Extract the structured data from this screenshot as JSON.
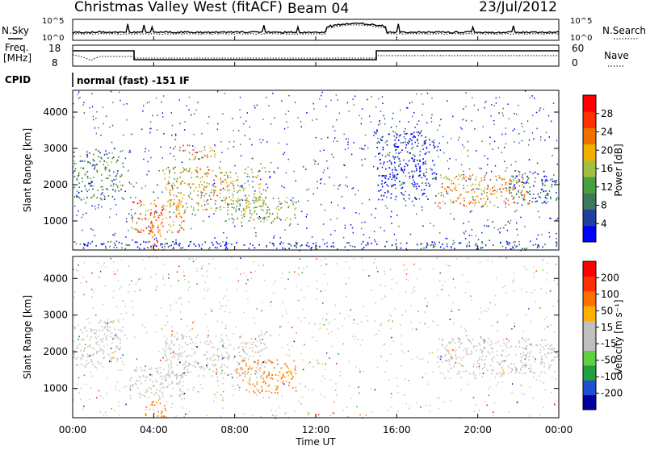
{
  "header": {
    "radar": "Christmas Valley West (fitACF)",
    "beam": "Beam 04",
    "date": "23/Jul/2012"
  },
  "noise_panel": {
    "left_label": "N.Sky",
    "right_label": "N.Search",
    "left_ticks": [
      "10^5",
      "10^0"
    ],
    "right_ticks": [
      "10^5",
      "10^0"
    ]
  },
  "freq_panel": {
    "left_label_1": "Freq.",
    "left_label_2": "[MHz]",
    "right_label": "Nave",
    "left_ticks": [
      "18",
      "8"
    ],
    "right_ticks": [
      "60",
      "0"
    ]
  },
  "cpid": {
    "label": "CPID",
    "text": "normal (fast) -151 IF"
  },
  "colors": {
    "power_scale": [
      "#0000ff",
      "#2040a0",
      "#3a7a5a",
      "#4aa040",
      "#a0c040",
      "#f0b000",
      "#f07000",
      "#ff3000",
      "#ff0000"
    ],
    "velocity_scale": [
      "#0000a0",
      "#2050d0",
      "#20a040",
      "#60d040",
      "#c0c0c0",
      "#c0c0c0",
      "#ffb000",
      "#ff7000",
      "#ff3000",
      "#ff0000"
    ],
    "gray_scatter": "#c4c4c0"
  },
  "chart_data": [
    {
      "type": "heatmap",
      "name": "power_panel",
      "ylabel": "Slant Range [km]",
      "yticks": [
        1000,
        2000,
        3000,
        4000
      ],
      "ylim": [
        200,
        4600
      ],
      "xlim": [
        0,
        24
      ],
      "colorbar": {
        "label": "Power [dB]",
        "ticks": [
          "28",
          "24",
          "20",
          "16",
          "12",
          "8",
          "4"
        ]
      },
      "regions": [
        {
          "t0": 0.0,
          "t1": 2.5,
          "r0": 1600,
          "r1": 3000,
          "level": 0.55
        },
        {
          "t0": 2.8,
          "t1": 5.5,
          "r0": 700,
          "r1": 1600,
          "level": 0.95
        },
        {
          "t0": 3.6,
          "t1": 4.6,
          "r0": 200,
          "r1": 900,
          "level": 1.0
        },
        {
          "t0": 4.5,
          "t1": 9.5,
          "r0": 1300,
          "r1": 2500,
          "level": 0.8
        },
        {
          "t0": 5.0,
          "t1": 7.0,
          "r0": 2700,
          "r1": 3100,
          "level": 0.85
        },
        {
          "t0": 7.5,
          "t1": 11.0,
          "r0": 1000,
          "r1": 1700,
          "level": 0.7
        },
        {
          "t0": 18.0,
          "t1": 22.5,
          "r0": 1400,
          "r1": 2300,
          "level": 0.9
        },
        {
          "t0": 21.5,
          "t1": 24.0,
          "r0": 1500,
          "r1": 2400,
          "level": 0.45
        },
        {
          "t0": 15.0,
          "t1": 18.0,
          "r0": 1600,
          "r1": 3500,
          "level": 0.3
        },
        {
          "t0": 0.0,
          "t1": 24.0,
          "r0": 250,
          "r1": 450,
          "level": 0.35
        }
      ]
    },
    {
      "type": "heatmap",
      "name": "velocity_panel",
      "ylabel": "Slant Range [km]",
      "yticks": [
        1000,
        2000,
        3000,
        4000
      ],
      "ylim": [
        200,
        4600
      ],
      "xlim": [
        0,
        24
      ],
      "xlabel": "Time UT",
      "xticks": [
        "00:00",
        "04:00",
        "08:00",
        "12:00",
        "16:00",
        "20:00",
        "00:00"
      ],
      "colorbar": {
        "label": "Velocity [m s⁻¹]",
        "ticks": [
          "200",
          "100",
          "50",
          "15",
          "-15",
          "-50",
          "-100",
          "-200"
        ]
      },
      "regions": [
        {
          "t0": 0.0,
          "t1": 2.5,
          "r0": 1600,
          "r1": 2900,
          "level": 0.5
        },
        {
          "t0": 2.8,
          "t1": 5.5,
          "r0": 700,
          "r1": 1600,
          "level": 0.5
        },
        {
          "t0": 4.5,
          "t1": 9.5,
          "r0": 1300,
          "r1": 2500,
          "level": 0.5
        },
        {
          "t0": 8.0,
          "t1": 11.0,
          "r0": 900,
          "r1": 1800,
          "level": 0.75
        },
        {
          "t0": 18.0,
          "t1": 24.0,
          "r0": 1400,
          "r1": 2400,
          "level": 0.5
        },
        {
          "t0": 3.5,
          "t1": 4.6,
          "r0": 200,
          "r1": 700,
          "level": 0.85
        }
      ]
    }
  ]
}
